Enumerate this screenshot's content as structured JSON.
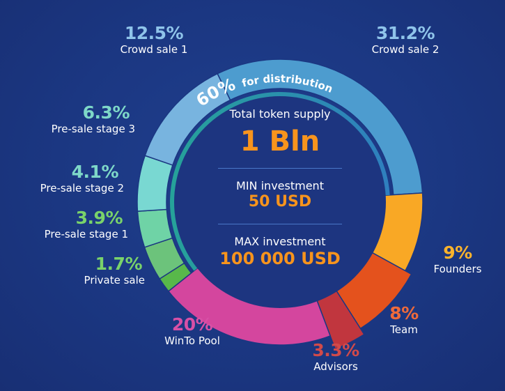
{
  "chart_data": {
    "type": "pie",
    "style": "donut",
    "inner_ring_label": {
      "pct": "60%",
      "text": "for distribution",
      "share": 0.6
    },
    "center": {
      "total_label": "Total token supply",
      "total_value": "1 Bln",
      "min_label": "MIN investment",
      "min_value": "50 USD",
      "max_label": "MAX investment",
      "max_value": "100 000 USD"
    },
    "slices": [
      {
        "name": "Crowd sale 2",
        "pct_label": "31.2%",
        "value": 31.2,
        "color": "#4d9ccf",
        "distribution": true
      },
      {
        "name": "Founders",
        "pct_label": "9%",
        "value": 9,
        "color": "#f9a825",
        "distribution": false
      },
      {
        "name": "Team",
        "pct_label": "8%",
        "value": 8,
        "color": "#e4521d",
        "distribution": false
      },
      {
        "name": "Advisors",
        "pct_label": "3.3%",
        "value": 3.3,
        "color": "#c1363e",
        "distribution": false
      },
      {
        "name": "WinTo Pool",
        "pct_label": "20%",
        "value": 20,
        "color": "#d4469e",
        "distribution": false
      },
      {
        "name": "Private sale",
        "pct_label": "1.7%",
        "value": 1.7,
        "color": "#58b84a",
        "distribution": true
      },
      {
        "name": "Pre-sale stage 1",
        "pct_label": "3.9%",
        "value": 3.9,
        "color": "#6cc37b",
        "distribution": true
      },
      {
        "name": "Pre-sale stage 2",
        "pct_label": "4.1%",
        "value": 4.1,
        "color": "#6fd3a6",
        "distribution": true
      },
      {
        "name": "Pre-sale stage 3",
        "pct_label": "6.3%",
        "value": 6.3,
        "color": "#79d8d2",
        "distribution": true
      },
      {
        "name": "Crowd sale 1",
        "pct_label": "12.5%",
        "value": 12.5,
        "color": "#78b4df",
        "distribution": true
      }
    ],
    "colors": {
      "background": "#1b3782",
      "distribution_ring": "#26a299",
      "ring_gradient_end": "#2f7fbf",
      "center_fill": "#1d3580",
      "accent_value": "#f7941d",
      "pool_text": "#d850a6",
      "team_text": "#ef6a3a",
      "advisors_text": "#d14a4a",
      "founders_text": "#fbb32c",
      "crowd_text": "#8fc4ea",
      "presale_text": "#7ed8c8",
      "green_text": "#7ad36a"
    }
  }
}
